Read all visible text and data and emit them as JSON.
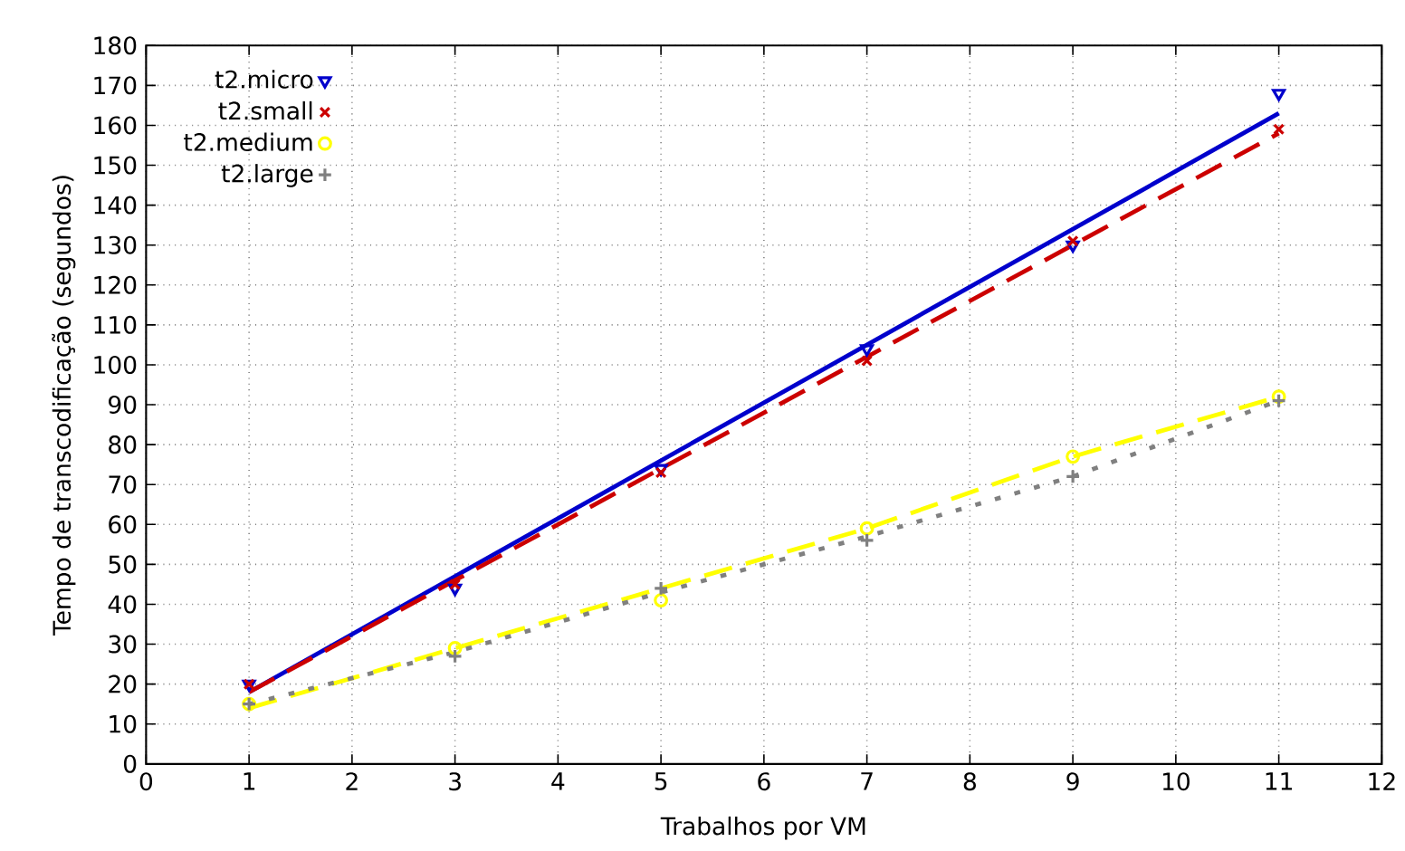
{
  "chart_data": {
    "type": "scatter",
    "xlabel": "Trabalhos por VM",
    "ylabel": "Tempo de transcodificação (segundos)",
    "xlim": [
      0,
      12
    ],
    "xticks": [
      0,
      1,
      2,
      3,
      4,
      5,
      6,
      7,
      8,
      9,
      10,
      11,
      12
    ],
    "ylim": [
      0,
      180
    ],
    "yticks": [
      0,
      10,
      20,
      30,
      40,
      50,
      60,
      70,
      80,
      90,
      100,
      110,
      120,
      130,
      140,
      150,
      160,
      170,
      180
    ],
    "grid": true,
    "legend": "top left",
    "series": [
      {
        "name": "t2.micro",
        "color": "#0000cc",
        "marker": "triangle",
        "x": [
          1,
          3,
          5,
          7,
          9,
          11
        ],
        "values": [
          20,
          44,
          74,
          104,
          130,
          168
        ]
      },
      {
        "name": "t2.small",
        "color": "#cc0000",
        "marker": "cross",
        "x": [
          1,
          3,
          5,
          7,
          9,
          11
        ],
        "values": [
          20,
          45,
          73,
          101,
          131,
          159
        ]
      },
      {
        "name": "t2.medium",
        "color": "#ffff00",
        "marker": "circle",
        "x": [
          1,
          3,
          5,
          7,
          9,
          11
        ],
        "values": [
          15,
          29,
          41,
          59,
          77,
          92
        ]
      },
      {
        "name": "t2.large",
        "color": "#808080",
        "marker": "plus",
        "x": [
          1,
          3,
          5,
          7,
          9,
          11
        ],
        "values": [
          15,
          27,
          44,
          56,
          72,
          91
        ]
      },
      {
        "type": "line",
        "color": "#0000cc",
        "line_style": "solid",
        "marker": "none",
        "x": [
          1,
          11
        ],
        "values": [
          18,
          163
        ]
      },
      {
        "type": "line",
        "color": "#cc0000",
        "line_style": "dashed",
        "marker": "none",
        "x": [
          1,
          11
        ],
        "values": [
          18,
          158
        ]
      },
      {
        "type": "line",
        "color": "#ffff00",
        "line_style": "dashed",
        "marker": "none",
        "x": [
          1,
          3,
          5,
          7,
          9,
          11
        ],
        "values": [
          14,
          29,
          44,
          59,
          77,
          92
        ]
      },
      {
        "type": "line",
        "color": "#808080",
        "line_style": "dotted",
        "marker": "none",
        "x": [
          1,
          3,
          5,
          7,
          9,
          11
        ],
        "values": [
          15,
          28,
          43,
          57,
          72,
          91
        ]
      }
    ]
  }
}
